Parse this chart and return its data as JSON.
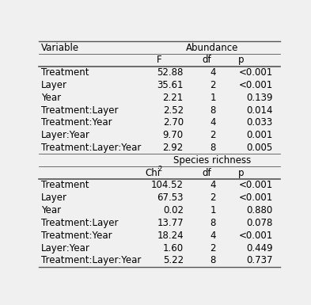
{
  "abundance_title": "Abundance",
  "richness_title": "Species richness",
  "header1": [
    "",
    "F",
    "df",
    "p"
  ],
  "abundance_rows": [
    [
      "Treatment",
      "52.88",
      "4",
      "<0.001"
    ],
    [
      "Layer",
      "35.61",
      "2",
      "<0.001"
    ],
    [
      "Year",
      "2.21",
      "1",
      "0.139"
    ],
    [
      "Treatment:Layer",
      "2.52",
      "8",
      "0.014"
    ],
    [
      "Treatment:Year",
      "2.70",
      "4",
      "0.033"
    ],
    [
      "Layer:Year",
      "9.70",
      "2",
      "0.001"
    ],
    [
      "Treatment:Layer:Year",
      "2.92",
      "8",
      "0.005"
    ]
  ],
  "richness_rows": [
    [
      "Treatment",
      "104.52",
      "4",
      "<0.001"
    ],
    [
      "Layer",
      "67.53",
      "2",
      "<0.001"
    ],
    [
      "Year",
      "0.02",
      "1",
      "0.880"
    ],
    [
      "Treatment:Layer",
      "13.77",
      "8",
      "0.078"
    ],
    [
      "Treatment:Year",
      "18.24",
      "4",
      "<0.001"
    ],
    [
      "Layer:Year",
      "1.60",
      "2",
      "0.449"
    ],
    [
      "Treatment:Layer:Year",
      "5.22",
      "8",
      "0.737"
    ]
  ],
  "bg_color": "#f0f0f0",
  "text_color": "#000000",
  "fontsize": 8.5,
  "line_color": "#555555"
}
